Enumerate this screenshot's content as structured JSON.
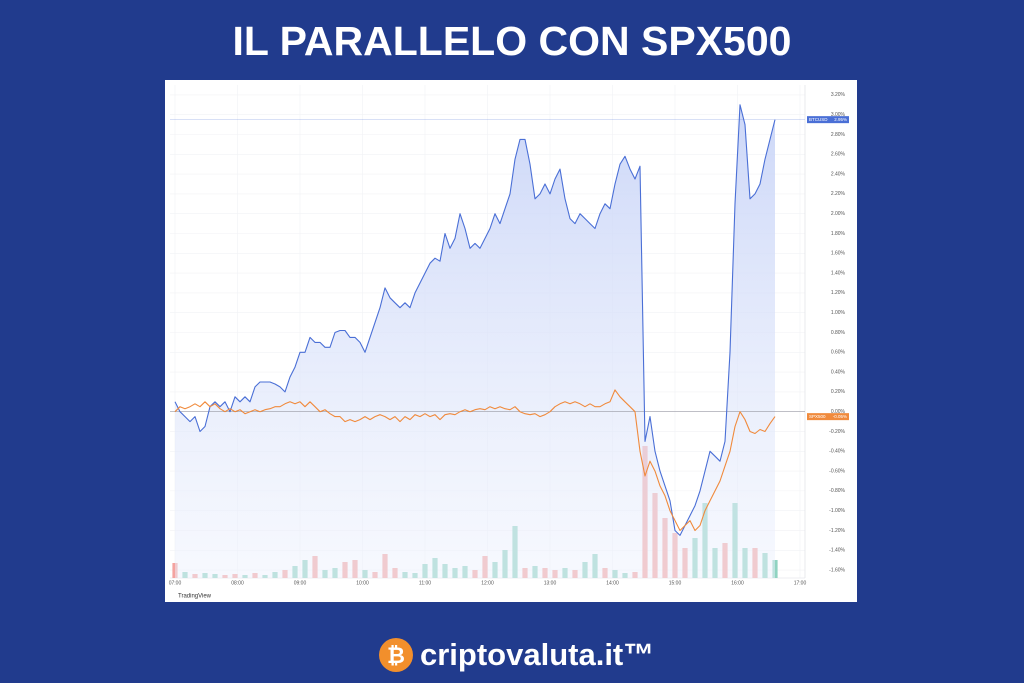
{
  "header": {
    "title": "IL PARALLELO CON SPX500"
  },
  "chart_data": {
    "type": "line",
    "x": [
      7,
      7.08,
      7.16,
      7.24,
      7.32,
      7.4,
      7.48,
      7.56,
      7.64,
      7.72,
      7.8,
      7.88,
      7.96,
      8.04,
      8.12,
      8.2,
      8.28,
      8.36,
      8.44,
      8.52,
      8.6,
      8.68,
      8.76,
      8.84,
      8.92,
      9,
      9.08,
      9.16,
      9.24,
      9.32,
      9.4,
      9.48,
      9.56,
      9.64,
      9.72,
      9.8,
      9.88,
      9.96,
      10.04,
      10.12,
      10.2,
      10.28,
      10.36,
      10.44,
      10.52,
      10.6,
      10.68,
      10.76,
      10.84,
      10.92,
      11,
      11.08,
      11.16,
      11.24,
      11.32,
      11.4,
      11.48,
      11.56,
      11.64,
      11.72,
      11.8,
      11.88,
      11.96,
      12.04,
      12.12,
      12.2,
      12.28,
      12.36,
      12.44,
      12.52,
      12.6,
      12.68,
      12.76,
      12.84,
      12.92,
      13,
      13.08,
      13.16,
      13.24,
      13.32,
      13.4,
      13.48,
      13.56,
      13.64,
      13.72,
      13.8,
      13.88,
      13.96,
      14.04,
      14.12,
      14.2,
      14.28,
      14.36,
      14.44,
      14.52,
      14.6,
      14.68,
      14.76,
      14.84,
      14.92,
      15,
      15.08,
      15.16,
      15.24,
      15.32,
      15.4,
      15.48,
      15.56,
      15.64,
      15.72,
      15.8,
      15.88,
      15.96,
      16.04,
      16.12,
      16.2,
      16.28,
      16.36,
      16.44,
      16.52,
      16.6
    ],
    "series": [
      {
        "name": "BTCUSD",
        "color": "#4a6fd6",
        "value_label": "2.95%",
        "values": [
          0.1,
          0,
          -0.05,
          -0.1,
          -0.05,
          -0.2,
          -0.15,
          0.05,
          0.1,
          0.05,
          0.1,
          0,
          0.15,
          0.1,
          0.15,
          0.1,
          0.25,
          0.3,
          0.3,
          0.3,
          0.28,
          0.25,
          0.2,
          0.35,
          0.45,
          0.6,
          0.6,
          0.75,
          0.7,
          0.7,
          0.65,
          0.65,
          0.8,
          0.82,
          0.82,
          0.75,
          0.75,
          0.7,
          0.6,
          0.75,
          0.9,
          1.05,
          1.25,
          1.15,
          1.1,
          1.05,
          1.1,
          1.05,
          1.2,
          1.3,
          1.4,
          1.5,
          1.55,
          1.52,
          1.8,
          1.65,
          1.75,
          2,
          1.85,
          1.65,
          1.7,
          1.65,
          1.75,
          1.85,
          2,
          1.9,
          2.05,
          2.2,
          2.55,
          2.75,
          2.75,
          2.5,
          2.15,
          2.2,
          2.3,
          2.2,
          2.35,
          2.45,
          2.15,
          1.95,
          1.9,
          2,
          1.95,
          1.9,
          1.85,
          2,
          2.1,
          2.05,
          2.3,
          2.5,
          2.58,
          2.45,
          2.35,
          2.48,
          -0.3,
          -0.05,
          -0.4,
          -0.6,
          -0.75,
          -0.9,
          -1.2,
          -1.25,
          -1.15,
          -1.05,
          -0.95,
          -0.8,
          -0.6,
          -0.4,
          -0.45,
          -0.5,
          -0.3,
          0.6,
          2.1,
          3.1,
          2.9,
          2.15,
          2.2,
          2.3,
          2.55,
          2.75,
          2.95
        ]
      },
      {
        "name": "SPX500",
        "color": "#f08a3c",
        "value_label": "-0.05%",
        "values": [
          0,
          0.05,
          0.03,
          0.05,
          0.08,
          0.05,
          0.1,
          0.05,
          0.08,
          0.03,
          0,
          0.03,
          0,
          0.02,
          -0.02,
          0,
          0.02,
          0,
          0.02,
          0.03,
          0.05,
          0.05,
          0.08,
          0.1,
          0.08,
          0.1,
          0.05,
          0.1,
          0.05,
          0,
          0.02,
          -0.02,
          -0.05,
          -0.05,
          -0.1,
          -0.08,
          -0.1,
          -0.08,
          -0.05,
          -0.08,
          -0.05,
          -0.03,
          -0.05,
          -0.08,
          -0.05,
          -0.1,
          -0.05,
          -0.08,
          -0.03,
          -0.05,
          -0.02,
          -0.05,
          -0.03,
          -0.08,
          -0.03,
          -0.02,
          -0.03,
          0,
          0.02,
          0,
          0.02,
          0.03,
          0.02,
          0.05,
          0.03,
          0.05,
          0.03,
          0.02,
          0.05,
          0,
          -0.02,
          -0.03,
          -0.02,
          -0.05,
          -0.03,
          0,
          0.05,
          0.08,
          0.1,
          0.08,
          0.1,
          0.08,
          0.05,
          0.08,
          0.05,
          0.05,
          0.08,
          0.1,
          0.22,
          0.15,
          0.1,
          0.05,
          0,
          -0.4,
          -0.65,
          -0.5,
          -0.6,
          -0.75,
          -0.85,
          -1,
          -1.1,
          -1.2,
          -1.15,
          -1.1,
          -1.2,
          -1.15,
          -1,
          -0.9,
          -0.8,
          -0.7,
          -0.55,
          -0.4,
          -0.15,
          0,
          -0.08,
          -0.2,
          -0.22,
          -0.18,
          -0.2,
          -0.12,
          -0.05
        ]
      }
    ],
    "volume": {
      "up_color": "#8fd3c1",
      "down_color": "#f4a3a0",
      "vlim": [
        0,
        135
      ],
      "x": [
        7,
        7.16,
        7.32,
        7.48,
        7.64,
        7.8,
        7.96,
        8.12,
        8.28,
        8.44,
        8.6,
        8.76,
        8.92,
        9.08,
        9.24,
        9.4,
        9.56,
        9.72,
        9.88,
        10.04,
        10.2,
        10.36,
        10.52,
        10.68,
        10.84,
        11,
        11.16,
        11.32,
        11.48,
        11.64,
        11.8,
        11.96,
        12.12,
        12.28,
        12.44,
        12.6,
        12.76,
        12.92,
        13.08,
        13.24,
        13.4,
        13.56,
        13.72,
        13.88,
        14.04,
        14.2,
        14.36,
        14.52,
        14.68,
        14.84,
        15,
        15.16,
        15.32,
        15.48,
        15.64,
        15.8,
        15.96,
        16.12,
        16.28,
        16.44,
        16.6
      ],
      "values": [
        15,
        6,
        4,
        5,
        4,
        3,
        4,
        3,
        5,
        3,
        6,
        8,
        12,
        18,
        22,
        8,
        10,
        16,
        18,
        8,
        6,
        24,
        10,
        6,
        5,
        14,
        20,
        14,
        10,
        12,
        8,
        22,
        16,
        28,
        52,
        10,
        12,
        10,
        8,
        10,
        8,
        16,
        24,
        10,
        8,
        5,
        6,
        132,
        85,
        60,
        45,
        30,
        40,
        75,
        30,
        35,
        75,
        30,
        30,
        25,
        18
      ],
      "up": [
        false,
        true,
        false,
        true,
        true,
        false,
        false,
        true,
        false,
        true,
        true,
        false,
        true,
        true,
        false,
        true,
        true,
        false,
        false,
        true,
        false,
        false,
        false,
        true,
        true,
        true,
        true,
        true,
        true,
        true,
        false,
        false,
        true,
        true,
        true,
        false,
        true,
        false,
        false,
        true,
        false,
        true,
        true,
        false,
        true,
        true,
        false,
        false,
        false,
        false,
        false,
        false,
        true,
        true,
        true,
        false,
        true,
        true,
        false,
        true,
        true
      ]
    },
    "xlim": [
      6.92,
      17.08
    ],
    "xticks": [
      {
        "value": 7,
        "label": "07:00"
      },
      {
        "value": 8,
        "label": "08:00"
      },
      {
        "value": 9,
        "label": "09:00"
      },
      {
        "value": 10,
        "label": "10:00"
      },
      {
        "value": 11,
        "label": "11:00"
      },
      {
        "value": 12,
        "label": "12:00"
      },
      {
        "value": 13,
        "label": "13:00"
      },
      {
        "value": 14,
        "label": "14:00"
      },
      {
        "value": 15,
        "label": "15:00"
      },
      {
        "value": 16,
        "label": "16:00"
      },
      {
        "value": 17,
        "label": "17:00"
      }
    ],
    "ylim": [
      -1.68,
      3.3
    ],
    "yticks": [
      {
        "value": 3.2,
        "label": "3.20%"
      },
      {
        "value": 3,
        "label": "3.00%"
      },
      {
        "value": 2.8,
        "label": "2.80%"
      },
      {
        "value": 2.6,
        "label": "2.60%"
      },
      {
        "value": 2.4,
        "label": "2.40%"
      },
      {
        "value": 2.2,
        "label": "2.20%"
      },
      {
        "value": 2,
        "label": "2.00%"
      },
      {
        "value": 1.8,
        "label": "1.80%"
      },
      {
        "value": 1.6,
        "label": "1.60%"
      },
      {
        "value": 1.4,
        "label": "1.40%"
      },
      {
        "value": 1.2,
        "label": "1.20%"
      },
      {
        "value": 1,
        "label": "1.00%"
      },
      {
        "value": 0.8,
        "label": "0.80%"
      },
      {
        "value": 0.6,
        "label": "0.60%"
      },
      {
        "value": 0.4,
        "label": "0.40%"
      },
      {
        "value": 0.2,
        "label": "0.20%"
      },
      {
        "value": 0,
        "label": "0.00%"
      },
      {
        "value": -0.2,
        "label": "-0.20%"
      },
      {
        "value": -0.4,
        "label": "-0.40%"
      },
      {
        "value": -0.6,
        "label": "-0.60%"
      },
      {
        "value": -0.8,
        "label": "-0.80%"
      },
      {
        "value": -1,
        "label": "-1.00%"
      },
      {
        "value": -1.2,
        "label": "-1.20%"
      },
      {
        "value": -1.4,
        "label": "-1.40%"
      },
      {
        "value": -1.6,
        "label": "-1.60%"
      }
    ],
    "grid": true,
    "watermark": "TradingView"
  },
  "footer": {
    "brand": "criptovaluta.it™"
  }
}
